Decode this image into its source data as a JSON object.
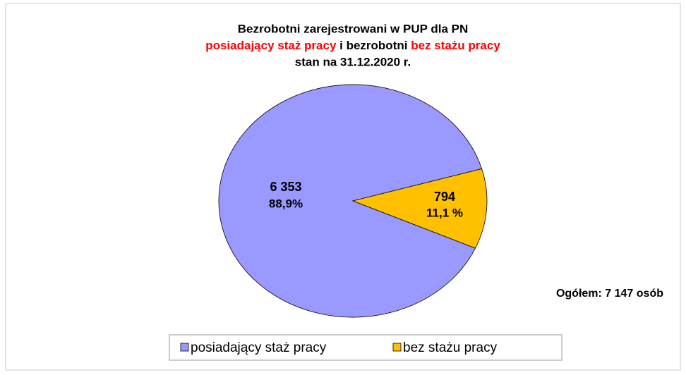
{
  "chart_data": {
    "type": "pie",
    "title": "Bezrobotni zarejestrowani w PUP dla PN",
    "subtitle": [
      "posiadający staż pracy",
      "i bezrobotni",
      "bez stażu pracy"
    ],
    "subtitle_colors": [
      "#ff0000",
      "#000000",
      "#ff0000"
    ],
    "date_line": "stan na 31.12.2020 r.",
    "categories": [
      "posiadający staż pracy",
      "bez stażu pracy"
    ],
    "values": [
      6353,
      794
    ],
    "value_labels": [
      "6 353",
      "794"
    ],
    "percents": [
      88.9,
      11.1
    ],
    "percent_labels": [
      "88,9%",
      "11,1 %"
    ],
    "colors": [
      "#9999ff",
      "#ffc000"
    ],
    "annotation": "Ogółem:  7 147 osób",
    "legend": "bottom"
  }
}
